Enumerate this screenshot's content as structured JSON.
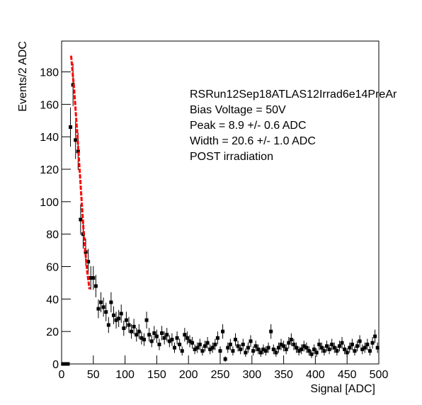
{
  "chart_data": {
    "type": "histogram",
    "x_label": "Signal [ADC]",
    "y_label": "Events/2 ADC",
    "annotations": [
      "RSRun12Sep18ATLAS12Irrad6e14PreAr",
      "Bias Voltage = 50V",
      "Peak = 8.9 +/- 0.6 ADC",
      "Width = 20.6 +/- 1.0 ADC",
      "POST irradiation"
    ],
    "xlim": [
      0,
      500
    ],
    "ylim": [
      0,
      199
    ],
    "xticks": [
      0,
      50,
      100,
      150,
      200,
      250,
      300,
      350,
      400,
      450,
      500
    ],
    "yticks": [
      0,
      20,
      40,
      60,
      80,
      100,
      120,
      140,
      160,
      180
    ],
    "color": "#000000",
    "bins": [
      0,
      4,
      8,
      12,
      16,
      20,
      24,
      28,
      32,
      36,
      40,
      44,
      48,
      52,
      56,
      60,
      64,
      68,
      72,
      76,
      80,
      84,
      88,
      92,
      96,
      100,
      104,
      108,
      112,
      116,
      120,
      124,
      128,
      132,
      136,
      140,
      144,
      148,
      152,
      156,
      160,
      164,
      168,
      172,
      176,
      180,
      184,
      188,
      192,
      196,
      200,
      204,
      208,
      212,
      216,
      220,
      224,
      228,
      232,
      236,
      240,
      244,
      248,
      252,
      256,
      260,
      264,
      268,
      272,
      276,
      280,
      284,
      288,
      292,
      296,
      300,
      304,
      308,
      312,
      316,
      320,
      324,
      328,
      332,
      336,
      340,
      344,
      348,
      352,
      356,
      360,
      364,
      368,
      372,
      376,
      380,
      384,
      388,
      392,
      396,
      400,
      404,
      408,
      412,
      416,
      420,
      424,
      428,
      432,
      436,
      440,
      444,
      448,
      452,
      456,
      460,
      464,
      468,
      472,
      476,
      480,
      484,
      488,
      492,
      496,
      500
    ],
    "values": [
      0,
      0,
      0,
      146,
      172,
      138,
      131,
      89,
      80,
      69,
      63,
      53,
      53,
      48,
      34,
      38,
      35,
      32,
      24,
      38,
      30,
      27,
      28,
      31,
      22,
      27,
      24,
      20,
      23,
      18,
      20,
      16,
      15,
      27,
      18,
      14,
      19,
      17,
      12,
      19,
      16,
      18,
      14,
      15,
      10,
      16,
      12,
      8,
      18,
      16,
      14,
      13,
      9,
      10,
      12,
      8,
      11,
      13,
      9,
      10,
      12,
      16,
      8,
      20,
      3,
      10,
      12,
      8,
      15,
      11,
      9,
      12,
      7,
      10,
      14,
      8,
      11,
      9,
      7,
      9,
      8,
      10,
      20,
      9,
      7,
      10,
      12,
      11,
      9,
      13,
      15,
      12,
      10,
      8,
      9,
      11,
      10,
      8,
      6,
      9,
      7,
      12,
      10,
      8,
      11,
      9,
      12,
      10,
      8,
      11,
      13,
      9,
      7,
      10,
      12,
      8,
      11,
      14,
      9,
      10,
      12,
      8,
      13,
      17,
      10
    ],
    "errors": [
      0,
      0,
      0,
      12.1,
      13.1,
      11.7,
      11.4,
      9.4,
      8.9,
      8.3,
      7.9,
      7.3,
      7.3,
      6.9,
      5.8,
      6.2,
      5.9,
      5.7,
      4.9,
      6.2,
      5.5,
      5.2,
      5.3,
      5.6,
      4.7,
      5.2,
      4.9,
      4.5,
      4.8,
      4.2,
      4.5,
      4,
      3.9,
      5.2,
      4.2,
      3.7,
      4.4,
      4.1,
      3.5,
      4.4,
      4,
      4.2,
      3.7,
      3.9,
      3.2,
      4,
      3.5,
      2.8,
      4.2,
      4,
      3.7,
      3.6,
      3,
      3.2,
      3.5,
      2.8,
      3.3,
      3.6,
      3,
      3.2,
      3.5,
      4,
      2.8,
      4.5,
      1.7,
      3.2,
      3.5,
      2.8,
      3.9,
      3.3,
      3,
      3.5,
      2.6,
      3.2,
      3.7,
      2.8,
      3.3,
      3,
      2.6,
      3,
      2.8,
      3.2,
      4.5,
      3,
      2.6,
      3.2,
      3.5,
      3.3,
      3,
      3.6,
      3.9,
      3.5,
      3.2,
      2.8,
      3,
      3.3,
      3.2,
      2.8,
      2.4,
      3,
      2.6,
      3.5,
      3.2,
      2.8,
      3.3,
      3,
      3.5,
      3.2,
      2.8,
      3.3,
      3.6,
      3,
      2.6,
      3.2,
      3.5,
      2.8,
      3.3,
      3.7,
      3,
      3.2,
      3.5,
      2.8,
      3.6,
      4.1,
      3.2
    ],
    "fit": {
      "color": "#ff0000",
      "x": [
        15,
        20,
        25,
        30,
        35,
        40,
        44
      ],
      "y": [
        190,
        168,
        140,
        110,
        80,
        58,
        46
      ]
    }
  }
}
